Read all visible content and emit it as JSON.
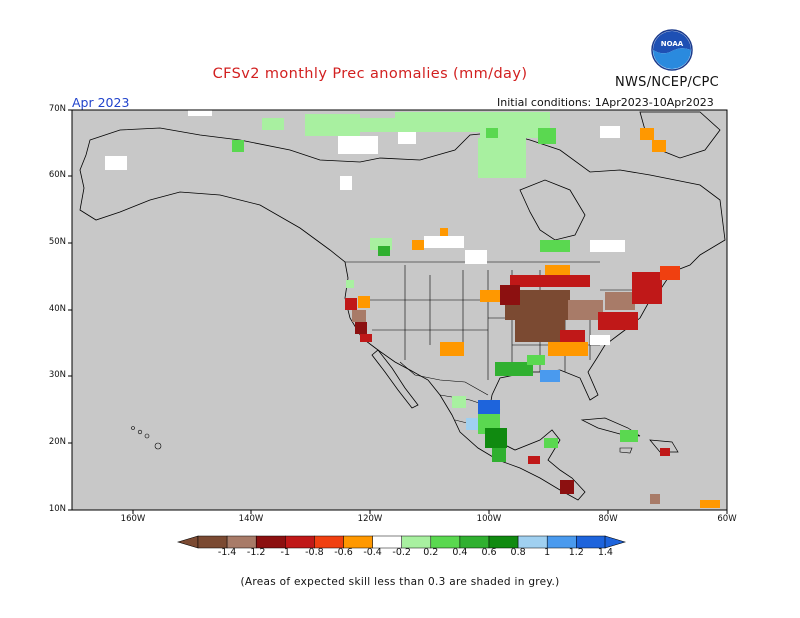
{
  "header": {
    "title": "CFSv2 monthly Prec anomalies (mm/day)",
    "agency": "NWS/NCEP/CPC",
    "logo_text": "NOAA",
    "month": "Apr 2023",
    "initial_conditions": "Initial conditions: 1Apr2023-10Apr2023"
  },
  "map": {
    "lat_labels": [
      "70N",
      "60N",
      "50N",
      "40N",
      "30N",
      "20N",
      "10N"
    ],
    "lon_labels": [
      "160W",
      "140W",
      "120W",
      "100W",
      "80W",
      "60W"
    ],
    "ocean_color": "#c8c8c8",
    "land_color": "#ffffff"
  },
  "colorbar": {
    "labels": [
      "-1.4",
      "-1.2",
      "-1",
      "-0.8",
      "-0.6",
      "-0.4",
      "-0.2",
      "0.2",
      "0.4",
      "0.6",
      "0.8",
      "1",
      "1.2",
      "1.4"
    ],
    "colors": [
      "#7b4a32",
      "#a87b68",
      "#8c1010",
      "#c01818",
      "#f04010",
      "#ff9800",
      "#ffffff",
      "#a8f0a0",
      "#5ad850",
      "#30b030",
      "#108a10",
      "#a0d0f0",
      "#4a9aee",
      "#1e64dc"
    ]
  },
  "footnote": "(Areas of expected skill less than 0.3 are shaded in grey.)"
}
